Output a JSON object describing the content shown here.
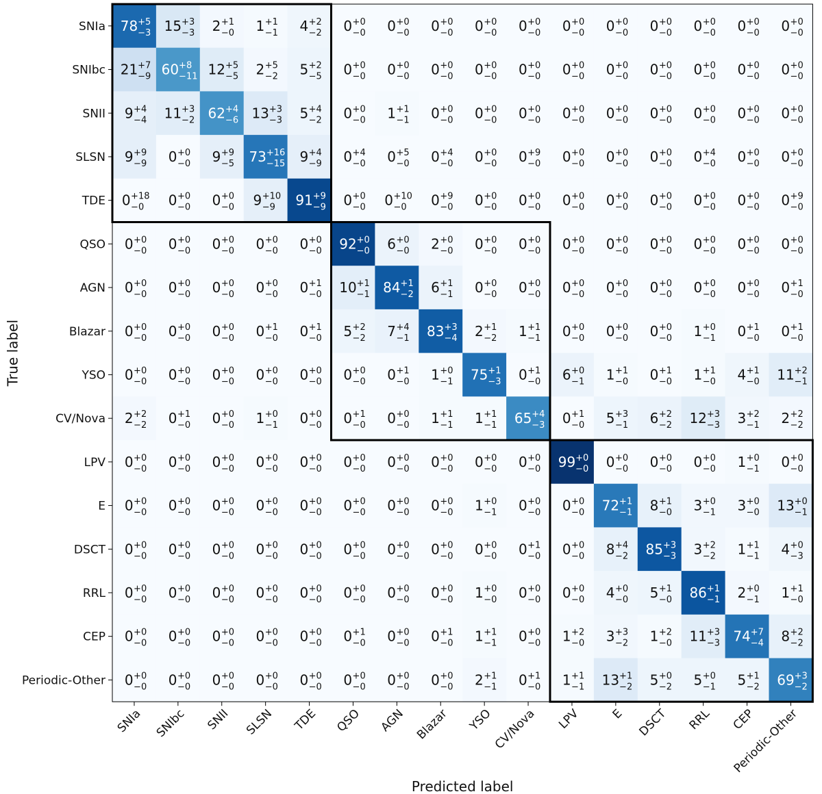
{
  "chart_data": {
    "type": "heatmap",
    "title": "",
    "xlabel": "Predicted label",
    "ylabel": "True label",
    "labels": [
      "SNIa",
      "SNIbc",
      "SNII",
      "SLSN",
      "TDE",
      "QSO",
      "AGN",
      "Blazar",
      "YSO",
      "CV/Nova",
      "LPV",
      "E",
      "DSCT",
      "RRL",
      "CEP",
      "Periodic-Other"
    ],
    "colormap": "Blues",
    "value_range": [
      0,
      100
    ],
    "cells": [
      [
        [
          78,
          5,
          3
        ],
        [
          15,
          3,
          3
        ],
        [
          2,
          1,
          0
        ],
        [
          1,
          1,
          1
        ],
        [
          4,
          2,
          2
        ],
        [
          0,
          0,
          0
        ],
        [
          0,
          0,
          0
        ],
        [
          0,
          0,
          0
        ],
        [
          0,
          0,
          0
        ],
        [
          0,
          0,
          0
        ],
        [
          0,
          0,
          0
        ],
        [
          0,
          0,
          0
        ],
        [
          0,
          0,
          0
        ],
        [
          0,
          0,
          0
        ],
        [
          0,
          0,
          0
        ],
        [
          0,
          0,
          0
        ]
      ],
      [
        [
          21,
          7,
          9
        ],
        [
          60,
          8,
          11
        ],
        [
          12,
          5,
          5
        ],
        [
          2,
          5,
          2
        ],
        [
          5,
          2,
          5
        ],
        [
          0,
          0,
          0
        ],
        [
          0,
          0,
          0
        ],
        [
          0,
          0,
          0
        ],
        [
          0,
          0,
          0
        ],
        [
          0,
          0,
          0
        ],
        [
          0,
          0,
          0
        ],
        [
          0,
          0,
          0
        ],
        [
          0,
          0,
          0
        ],
        [
          0,
          0,
          0
        ],
        [
          0,
          0,
          0
        ],
        [
          0,
          0,
          0
        ]
      ],
      [
        [
          9,
          4,
          4
        ],
        [
          11,
          3,
          2
        ],
        [
          62,
          4,
          6
        ],
        [
          13,
          3,
          3
        ],
        [
          5,
          4,
          2
        ],
        [
          0,
          0,
          0
        ],
        [
          1,
          1,
          1
        ],
        [
          0,
          0,
          0
        ],
        [
          0,
          0,
          0
        ],
        [
          0,
          0,
          0
        ],
        [
          0,
          0,
          0
        ],
        [
          0,
          0,
          0
        ],
        [
          0,
          0,
          0
        ],
        [
          0,
          0,
          0
        ],
        [
          0,
          0,
          0
        ],
        [
          0,
          0,
          0
        ]
      ],
      [
        [
          9,
          9,
          9
        ],
        [
          0,
          0,
          0
        ],
        [
          9,
          9,
          5
        ],
        [
          73,
          16,
          15
        ],
        [
          9,
          4,
          9
        ],
        [
          0,
          4,
          0
        ],
        [
          0,
          5,
          0
        ],
        [
          0,
          4,
          0
        ],
        [
          0,
          0,
          0
        ],
        [
          0,
          9,
          0
        ],
        [
          0,
          0,
          0
        ],
        [
          0,
          0,
          0
        ],
        [
          0,
          0,
          0
        ],
        [
          0,
          4,
          0
        ],
        [
          0,
          0,
          0
        ],
        [
          0,
          0,
          0
        ]
      ],
      [
        [
          0,
          18,
          0
        ],
        [
          0,
          0,
          0
        ],
        [
          0,
          0,
          0
        ],
        [
          9,
          10,
          9
        ],
        [
          91,
          9,
          9
        ],
        [
          0,
          0,
          0
        ],
        [
          0,
          10,
          0
        ],
        [
          0,
          9,
          0
        ],
        [
          0,
          0,
          0
        ],
        [
          0,
          0,
          0
        ],
        [
          0,
          0,
          0
        ],
        [
          0,
          0,
          0
        ],
        [
          0,
          0,
          0
        ],
        [
          0,
          0,
          0
        ],
        [
          0,
          0,
          0
        ],
        [
          0,
          9,
          0
        ]
      ],
      [
        [
          0,
          0,
          0
        ],
        [
          0,
          0,
          0
        ],
        [
          0,
          0,
          0
        ],
        [
          0,
          0,
          0
        ],
        [
          0,
          0,
          0
        ],
        [
          92,
          0,
          0
        ],
        [
          6,
          0,
          0
        ],
        [
          2,
          0,
          0
        ],
        [
          0,
          0,
          0
        ],
        [
          0,
          0,
          0
        ],
        [
          0,
          0,
          0
        ],
        [
          0,
          0,
          0
        ],
        [
          0,
          0,
          0
        ],
        [
          0,
          0,
          0
        ],
        [
          0,
          0,
          0
        ],
        [
          0,
          0,
          0
        ]
      ],
      [
        [
          0,
          0,
          0
        ],
        [
          0,
          0,
          0
        ],
        [
          0,
          0,
          0
        ],
        [
          0,
          0,
          0
        ],
        [
          0,
          1,
          0
        ],
        [
          10,
          1,
          1
        ],
        [
          84,
          1,
          2
        ],
        [
          6,
          1,
          1
        ],
        [
          0,
          0,
          0
        ],
        [
          0,
          0,
          0
        ],
        [
          0,
          0,
          0
        ],
        [
          0,
          0,
          0
        ],
        [
          0,
          0,
          0
        ],
        [
          0,
          0,
          0
        ],
        [
          0,
          0,
          0
        ],
        [
          0,
          1,
          0
        ]
      ],
      [
        [
          0,
          0,
          0
        ],
        [
          0,
          0,
          0
        ],
        [
          0,
          0,
          0
        ],
        [
          0,
          1,
          0
        ],
        [
          0,
          1,
          0
        ],
        [
          5,
          2,
          2
        ],
        [
          7,
          4,
          1
        ],
        [
          83,
          3,
          4
        ],
        [
          2,
          1,
          2
        ],
        [
          1,
          1,
          1
        ],
        [
          0,
          0,
          0
        ],
        [
          0,
          0,
          0
        ],
        [
          0,
          0,
          0
        ],
        [
          1,
          0,
          1
        ],
        [
          0,
          1,
          0
        ],
        [
          0,
          1,
          0
        ]
      ],
      [
        [
          0,
          0,
          0
        ],
        [
          0,
          0,
          0
        ],
        [
          0,
          0,
          0
        ],
        [
          0,
          0,
          0
        ],
        [
          0,
          0,
          0
        ],
        [
          0,
          0,
          0
        ],
        [
          0,
          1,
          0
        ],
        [
          1,
          0,
          1
        ],
        [
          75,
          1,
          3
        ],
        [
          0,
          1,
          0
        ],
        [
          6,
          0,
          1
        ],
        [
          1,
          1,
          0
        ],
        [
          0,
          1,
          0
        ],
        [
          1,
          1,
          0
        ],
        [
          4,
          1,
          0
        ],
        [
          11,
          2,
          1
        ]
      ],
      [
        [
          2,
          2,
          2
        ],
        [
          0,
          1,
          0
        ],
        [
          0,
          0,
          0
        ],
        [
          1,
          0,
          1
        ],
        [
          0,
          0,
          0
        ],
        [
          0,
          1,
          0
        ],
        [
          0,
          0,
          0
        ],
        [
          1,
          1,
          1
        ],
        [
          1,
          1,
          1
        ],
        [
          65,
          4,
          3
        ],
        [
          0,
          1,
          0
        ],
        [
          5,
          3,
          1
        ],
        [
          6,
          2,
          2
        ],
        [
          12,
          3,
          3
        ],
        [
          3,
          2,
          1
        ],
        [
          2,
          2,
          2
        ]
      ],
      [
        [
          0,
          0,
          0
        ],
        [
          0,
          0,
          0
        ],
        [
          0,
          0,
          0
        ],
        [
          0,
          0,
          0
        ],
        [
          0,
          0,
          0
        ],
        [
          0,
          0,
          0
        ],
        [
          0,
          0,
          0
        ],
        [
          0,
          0,
          0
        ],
        [
          0,
          0,
          0
        ],
        [
          0,
          0,
          0
        ],
        [
          99,
          0,
          0
        ],
        [
          0,
          0,
          0
        ],
        [
          0,
          0,
          0
        ],
        [
          0,
          0,
          0
        ],
        [
          1,
          0,
          1
        ],
        [
          0,
          0,
          0
        ]
      ],
      [
        [
          0,
          0,
          0
        ],
        [
          0,
          0,
          0
        ],
        [
          0,
          0,
          0
        ],
        [
          0,
          0,
          0
        ],
        [
          0,
          0,
          0
        ],
        [
          0,
          0,
          0
        ],
        [
          0,
          0,
          0
        ],
        [
          0,
          0,
          0
        ],
        [
          1,
          0,
          1
        ],
        [
          0,
          0,
          0
        ],
        [
          0,
          0,
          0
        ],
        [
          72,
          1,
          1
        ],
        [
          8,
          1,
          0
        ],
        [
          3,
          0,
          1
        ],
        [
          3,
          0,
          0
        ],
        [
          13,
          0,
          1
        ]
      ],
      [
        [
          0,
          0,
          0
        ],
        [
          0,
          0,
          0
        ],
        [
          0,
          0,
          0
        ],
        [
          0,
          0,
          0
        ],
        [
          0,
          0,
          0
        ],
        [
          0,
          0,
          0
        ],
        [
          0,
          0,
          0
        ],
        [
          0,
          0,
          0
        ],
        [
          0,
          0,
          0
        ],
        [
          0,
          1,
          0
        ],
        [
          0,
          0,
          0
        ],
        [
          8,
          4,
          2
        ],
        [
          85,
          3,
          3
        ],
        [
          3,
          2,
          2
        ],
        [
          1,
          1,
          1
        ],
        [
          4,
          0,
          3
        ]
      ],
      [
        [
          0,
          0,
          0
        ],
        [
          0,
          0,
          0
        ],
        [
          0,
          0,
          0
        ],
        [
          0,
          0,
          0
        ],
        [
          0,
          0,
          0
        ],
        [
          0,
          0,
          0
        ],
        [
          0,
          0,
          0
        ],
        [
          0,
          0,
          0
        ],
        [
          1,
          0,
          0
        ],
        [
          0,
          0,
          0
        ],
        [
          0,
          0,
          0
        ],
        [
          4,
          0,
          0
        ],
        [
          5,
          1,
          0
        ],
        [
          86,
          1,
          1
        ],
        [
          2,
          0,
          1
        ],
        [
          1,
          1,
          0
        ]
      ],
      [
        [
          0,
          0,
          0
        ],
        [
          0,
          0,
          0
        ],
        [
          0,
          0,
          0
        ],
        [
          0,
          0,
          0
        ],
        [
          0,
          0,
          0
        ],
        [
          0,
          1,
          0
        ],
        [
          0,
          0,
          0
        ],
        [
          0,
          1,
          0
        ],
        [
          1,
          1,
          1
        ],
        [
          0,
          0,
          0
        ],
        [
          1,
          2,
          0
        ],
        [
          3,
          3,
          2
        ],
        [
          1,
          2,
          0
        ],
        [
          11,
          3,
          3
        ],
        [
          74,
          7,
          4
        ],
        [
          8,
          2,
          2
        ]
      ],
      [
        [
          0,
          0,
          0
        ],
        [
          0,
          0,
          0
        ],
        [
          0,
          0,
          0
        ],
        [
          0,
          0,
          0
        ],
        [
          0,
          0,
          0
        ],
        [
          0,
          0,
          0
        ],
        [
          0,
          0,
          0
        ],
        [
          0,
          0,
          0
        ],
        [
          2,
          1,
          1
        ],
        [
          0,
          1,
          0
        ],
        [
          1,
          1,
          1
        ],
        [
          13,
          1,
          2
        ],
        [
          5,
          0,
          2
        ],
        [
          5,
          0,
          1
        ],
        [
          5,
          1,
          2
        ],
        [
          69,
          3,
          2
        ]
      ]
    ],
    "groups": [
      {
        "rows": [
          0,
          4
        ],
        "cols": [
          0,
          4
        ]
      },
      {
        "rows": [
          5,
          9
        ],
        "cols": [
          5,
          9
        ]
      },
      {
        "rows": [
          10,
          15
        ],
        "cols": [
          10,
          15
        ]
      }
    ]
  }
}
